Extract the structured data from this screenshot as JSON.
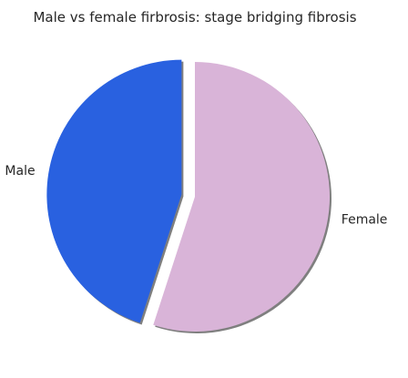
{
  "chart_data": {
    "type": "pie",
    "title": "Male vs female firbrosis: stage bridging fibrosis",
    "categories": [
      "Male",
      "Female"
    ],
    "values": [
      45,
      55
    ],
    "colors": [
      "#2961e0",
      "#d9b4d8"
    ],
    "explode": [
      true,
      false
    ],
    "shadow": true,
    "start_angle_deg": 90,
    "direction": "counterclockwise",
    "legend": "none"
  }
}
